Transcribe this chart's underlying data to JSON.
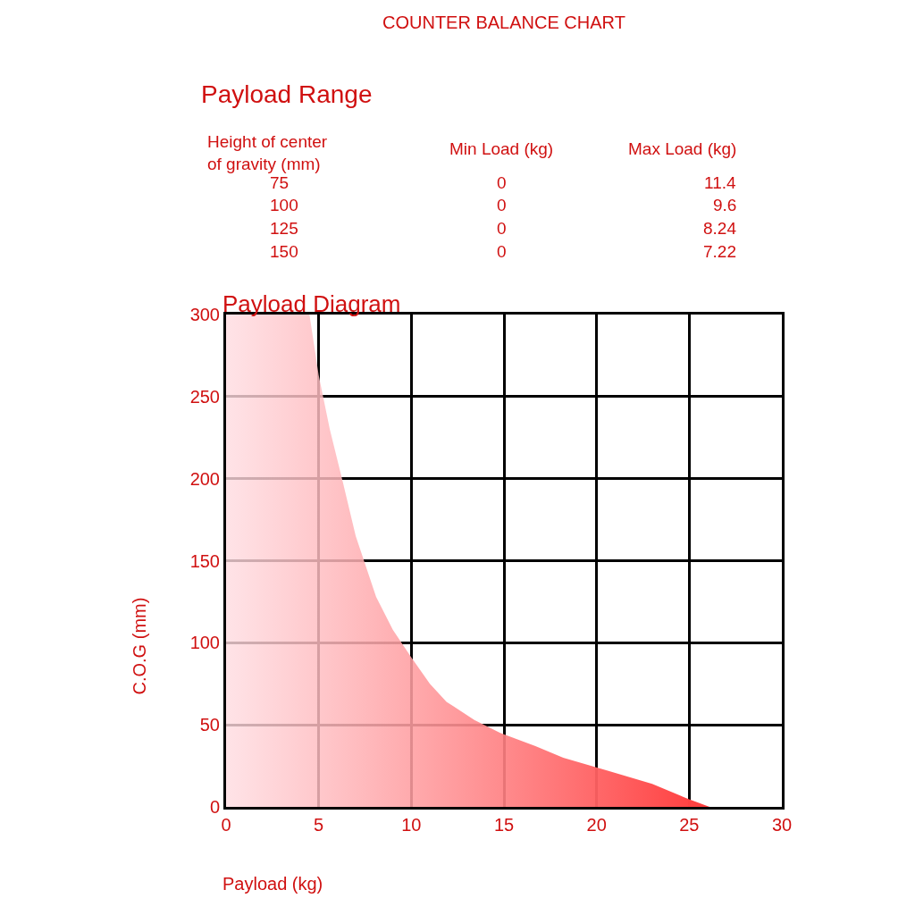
{
  "chart_data": {
    "type": "area",
    "title": "COUNTER BALANCE CHART",
    "subtitle": "Payload Diagram",
    "xlabel": "Payload (kg)",
    "ylabel": "C.O.G (mm)",
    "x": [
      0,
      4.5,
      5.0,
      5.6,
      6.3,
      7.0,
      8.1,
      9.0,
      10.0,
      11.0,
      11.9,
      13.4,
      14.8,
      16.7,
      18.2,
      20.6,
      23.0,
      24.9,
      26.1
    ],
    "series": [
      {
        "color": "#ff3b3b",
        "values": [
          300,
          300,
          263,
          230,
          198,
          165,
          128,
          108,
          91,
          75,
          64,
          53,
          45,
          37,
          30,
          22,
          14,
          5,
          0
        ]
      }
    ],
    "xlim": [
      0,
      30
    ],
    "xticks": [
      0,
      5,
      10,
      15,
      20,
      25,
      30
    ],
    "ylim": [
      0,
      300
    ],
    "yticks": [
      0,
      50,
      100,
      150,
      200,
      250,
      300
    ],
    "grid": true,
    "annotations": [
      "Payload Range",
      "Height of center\nof gravity (mm)",
      "Min Load (kg)",
      "Max Load (kg)",
      "75",
      "0",
      "11.4",
      "100",
      "0",
      "9.6",
      "125",
      "0",
      "8.24",
      "150",
      "0",
      "7.22"
    ]
  }
}
